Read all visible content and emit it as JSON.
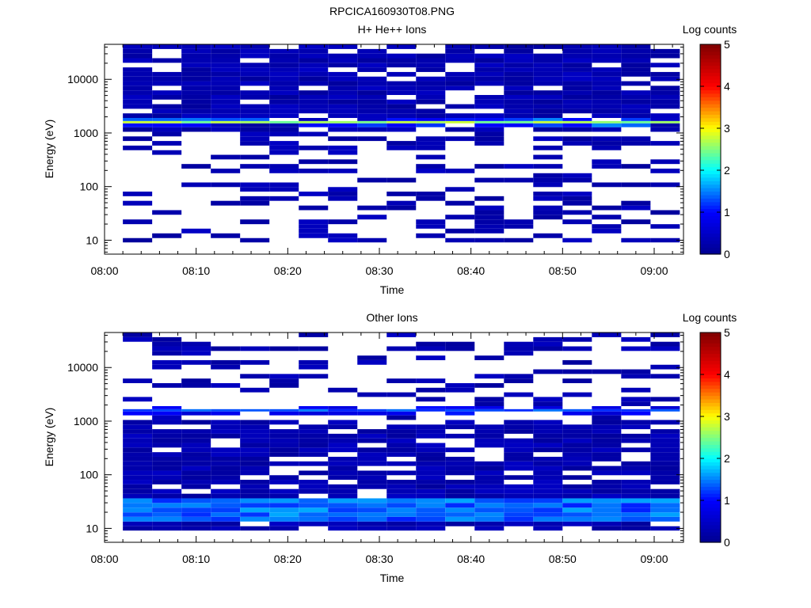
{
  "figure": {
    "title": "RPCICA160930T08.PNG"
  },
  "colors": {
    "cmap": [
      "#00008f",
      "#0000ff",
      "#00ffff",
      "#ffff00",
      "#ff0000",
      "#800000"
    ]
  },
  "chart_data": [
    {
      "type": "heatmap",
      "title": "H+ He++ Ions",
      "xlabel": "Time",
      "ylabel": "Energy (eV)",
      "x_ticks": [
        "08:00",
        "08:10",
        "08:20",
        "08:30",
        "08:40",
        "08:50",
        "09:00"
      ],
      "xlim_minutes": [
        0,
        63.2
      ],
      "y_ticks": [
        "10",
        "100",
        "1000",
        "10000"
      ],
      "ylim": [
        5.5,
        45000
      ],
      "yscale": "log",
      "colorbar": {
        "label": "Log counts",
        "range": [
          0,
          5
        ],
        "ticks": [
          "0",
          "1",
          "2",
          "3",
          "4",
          "5"
        ]
      },
      "time_bins_start_minutes": [
        2.0,
        5.2,
        8.4,
        11.6,
        14.8,
        18.0,
        21.2,
        24.4,
        27.6,
        30.8,
        34.0,
        37.2,
        40.4,
        43.6,
        46.8,
        50.0,
        53.2,
        56.4,
        59.6
      ],
      "time_bin_width_minutes": 3.2,
      "energy_bins_eV": [
        10,
        12,
        15,
        18,
        22,
        27,
        33,
        40,
        49,
        60,
        73,
        89,
        108,
        132,
        161,
        196,
        239,
        291,
        355,
        432,
        527,
        642,
        782,
        953,
        1161,
        1415,
        1620,
        1726,
        2102,
        2562,
        3120,
        3801,
        4631,
        5642,
        6874,
        8375,
        10203,
        12431,
        15145,
        18451,
        22479,
        27387,
        33366,
        40650
      ],
      "patterns": {
        "high_energy_coverage": 0.85,
        "low_energy_coverage": 0.35,
        "typical_log_counts": 0.3,
        "band": {
          "energy_eV": 1620,
          "log_counts": 2.6,
          "neighbor_log_counts": 1.4
        }
      }
    },
    {
      "type": "heatmap",
      "title": "Other Ions",
      "xlabel": "Time",
      "ylabel": "Energy (eV)",
      "x_ticks": [
        "08:00",
        "08:10",
        "08:20",
        "08:30",
        "08:40",
        "08:50",
        "09:00"
      ],
      "xlim_minutes": [
        0,
        63.2
      ],
      "y_ticks": [
        "10",
        "100",
        "1000",
        "10000"
      ],
      "ylim": [
        5.5,
        45000
      ],
      "yscale": "log",
      "colorbar": {
        "label": "Log counts",
        "range": [
          0,
          5
        ],
        "ticks": [
          "0",
          "1",
          "2",
          "3",
          "4",
          "5"
        ]
      },
      "time_bins_start_minutes": [
        2.0,
        5.2,
        8.4,
        11.6,
        14.8,
        18.0,
        21.2,
        24.4,
        27.6,
        30.8,
        34.0,
        37.2,
        40.4,
        43.6,
        46.8,
        50.0,
        53.2,
        56.4,
        59.6
      ],
      "time_bin_width_minutes": 3.2,
      "energy_bins_eV": [
        10,
        12,
        15,
        18,
        22,
        27,
        33,
        40,
        49,
        60,
        73,
        89,
        108,
        132,
        161,
        196,
        239,
        291,
        355,
        432,
        527,
        642,
        782,
        953,
        1161,
        1415,
        1620,
        1726,
        2102,
        2562,
        3120,
        3801,
        4631,
        5642,
        6874,
        8375,
        10203,
        12431,
        15145,
        18451,
        22479,
        27387,
        33366,
        40650
      ],
      "patterns": {
        "high_energy_coverage": 0.3,
        "low_energy_coverage": 0.8,
        "typical_log_counts": 0.3,
        "band": {
          "energy_eV": 1620,
          "log_counts": 1.3,
          "neighbor_log_counts": 1.0
        },
        "low_band": {
          "energy_min_eV": 15,
          "energy_max_eV": 33,
          "log_counts": 1.4
        }
      }
    }
  ]
}
